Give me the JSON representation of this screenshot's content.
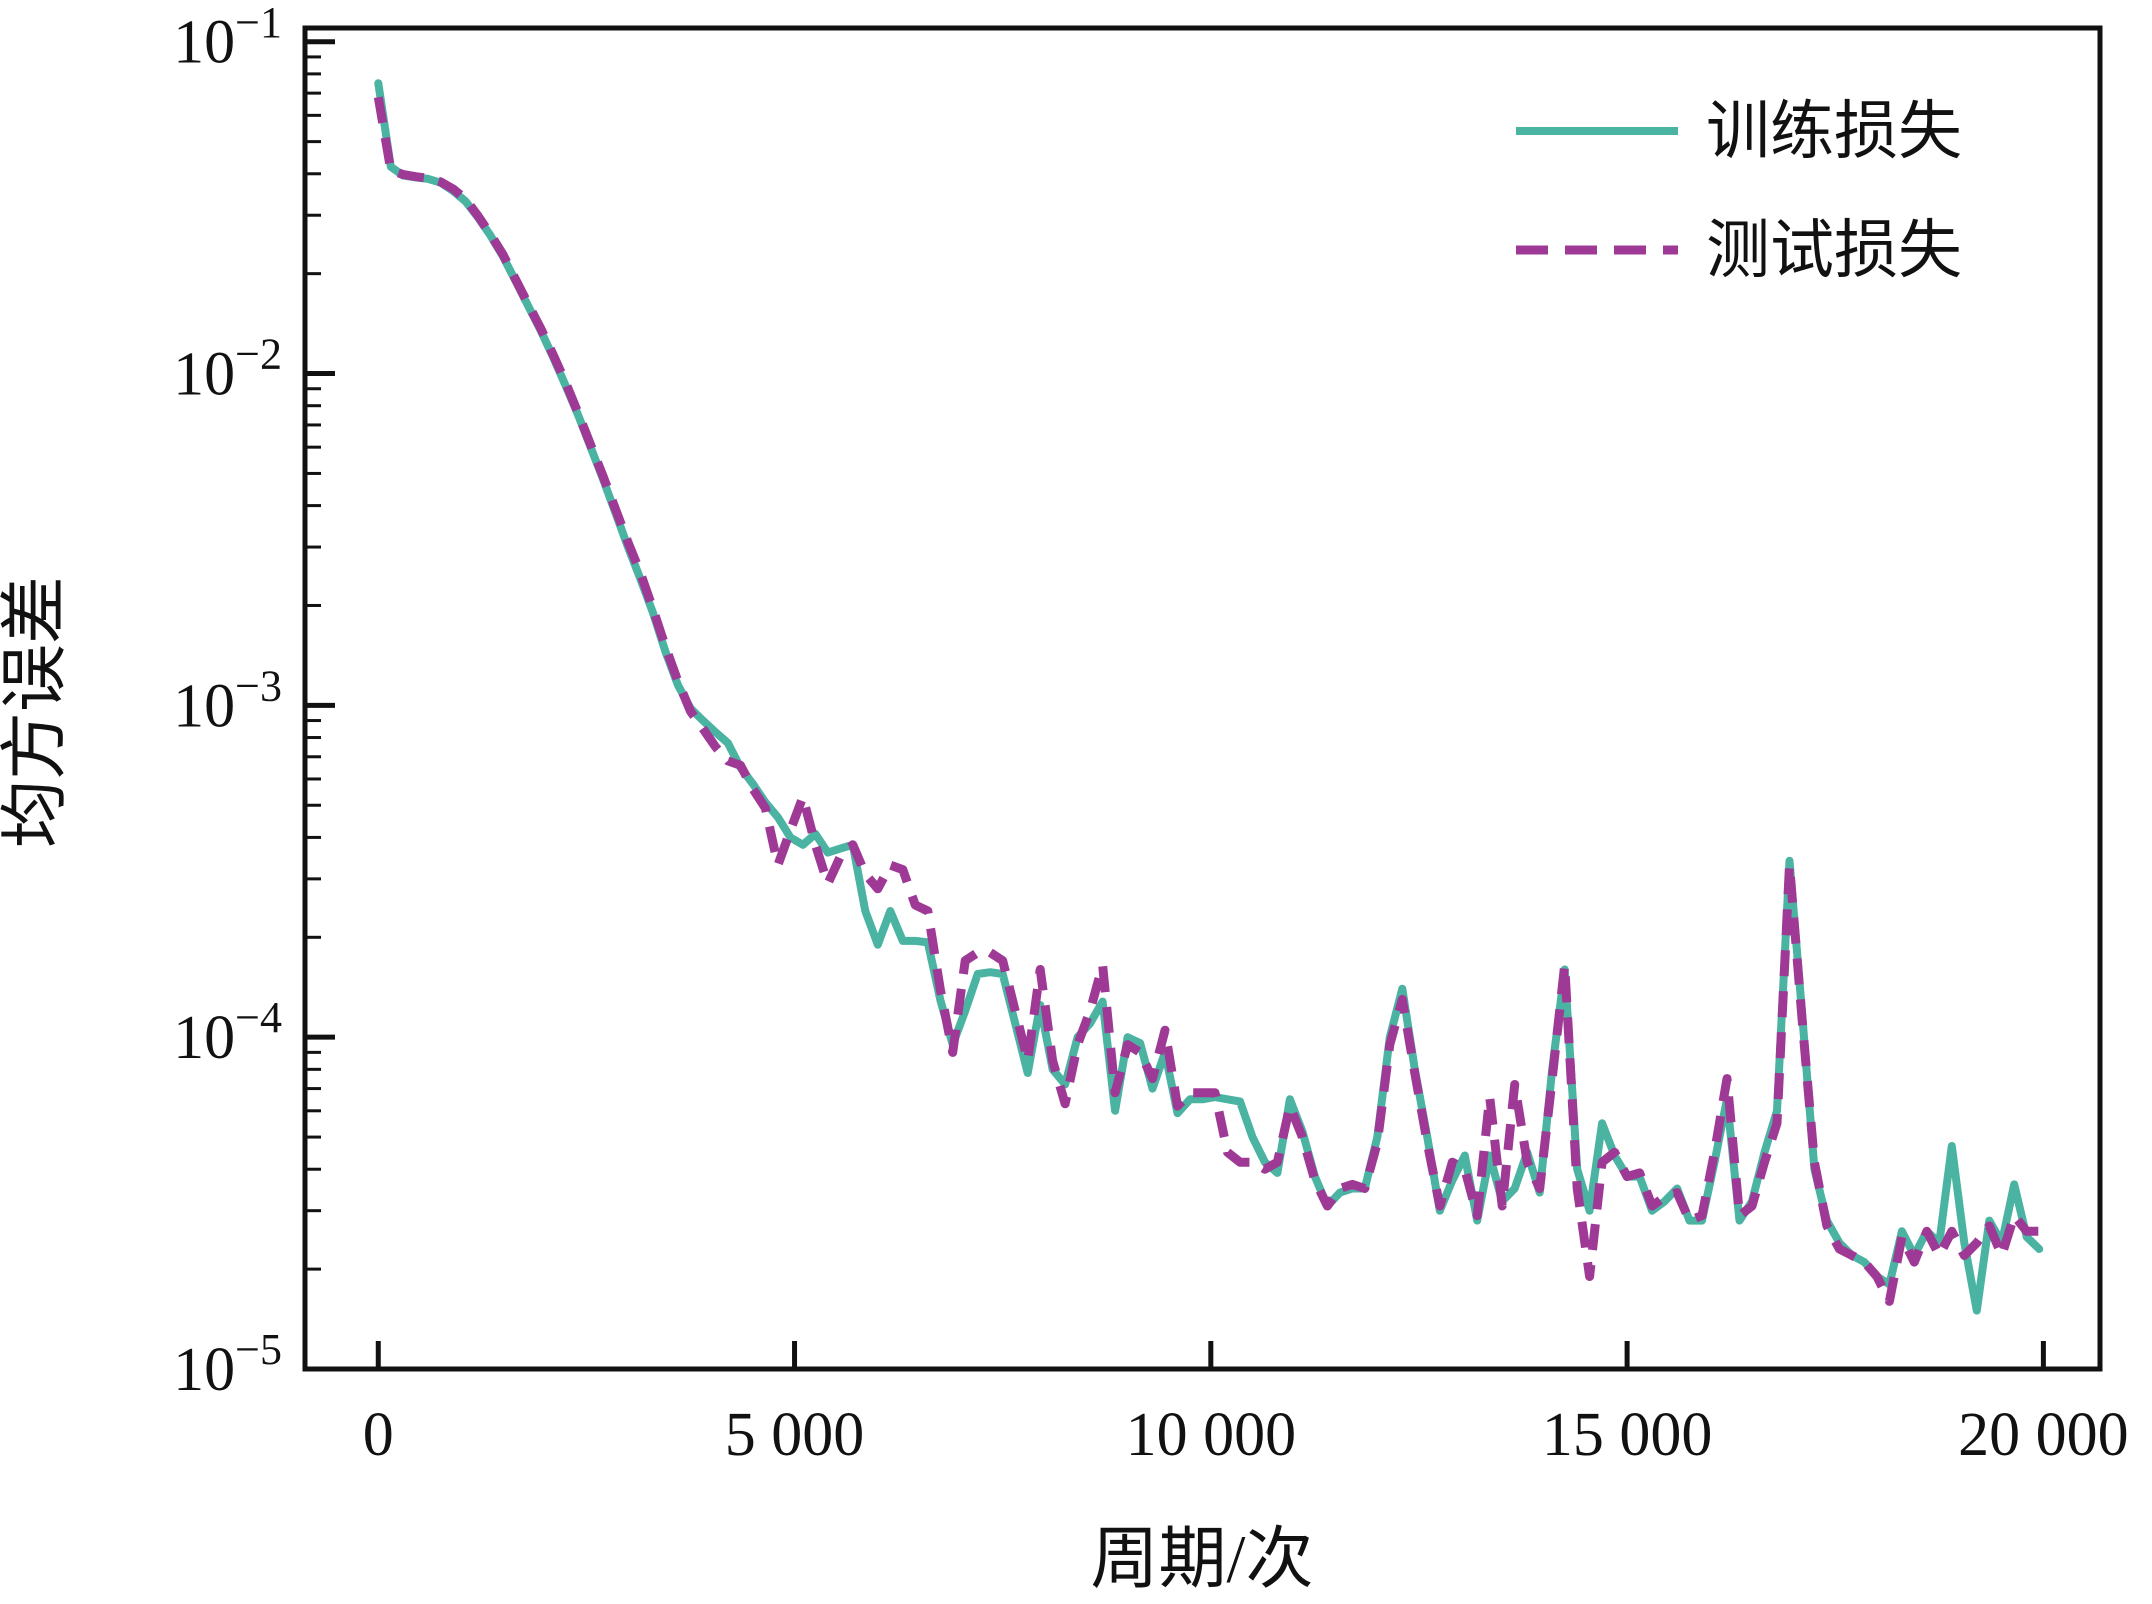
{
  "figure": {
    "background": "#ffffff",
    "axis_color": "#111111"
  },
  "chart_data": {
    "type": "line",
    "title": "",
    "xlabel": "周期/次",
    "ylabel": "均方误差",
    "yscale": "log",
    "grid": false,
    "legend_position": "upper right",
    "xlim": [
      -880,
      20680
    ],
    "ylim": [
      1e-05,
      0.11
    ],
    "x_ticks": {
      "values": [
        0,
        5000,
        10000,
        15000,
        20000
      ],
      "labels": [
        "0",
        "5 000",
        "10 000",
        "15 000",
        "20 000"
      ]
    },
    "y_ticks": {
      "values": [
        0.1,
        0.01,
        0.001,
        0.0001,
        1e-05
      ],
      "labels": [
        {
          "base": "10",
          "sup": "−1"
        },
        {
          "base": "10",
          "sup": "−2"
        },
        {
          "base": "10",
          "sup": "−3"
        },
        {
          "base": "10",
          "sup": "−4"
        },
        {
          "base": "10",
          "sup": "−5"
        }
      ],
      "minor_multiples": [
        2,
        3,
        4,
        5,
        6,
        7,
        8,
        9
      ]
    },
    "x": [
      0,
      150,
      300,
      450,
      600,
      750,
      900,
      1050,
      1200,
      1350,
      1500,
      1650,
      1800,
      1950,
      2100,
      2250,
      2400,
      2550,
      2700,
      2850,
      3000,
      3150,
      3300,
      3450,
      3600,
      3750,
      3900,
      4050,
      4200,
      4350,
      4500,
      4650,
      4800,
      4950,
      5100,
      5250,
      5400,
      5550,
      5700,
      5850,
      6000,
      6150,
      6300,
      6450,
      6600,
      6750,
      6900,
      7050,
      7200,
      7350,
      7500,
      7650,
      7800,
      7950,
      8100,
      8250,
      8400,
      8550,
      8700,
      8850,
      9000,
      9150,
      9300,
      9450,
      9600,
      9750,
      9900,
      10050,
      10200,
      10350,
      10500,
      10650,
      10800,
      10950,
      11100,
      11250,
      11400,
      11550,
      11700,
      11850,
      12000,
      12150,
      12300,
      12450,
      12600,
      12750,
      12900,
      13050,
      13200,
      13350,
      13500,
      13650,
      13800,
      13950,
      14100,
      14250,
      14400,
      14550,
      14700,
      14850,
      15000,
      15150,
      15300,
      15450,
      15600,
      15750,
      15900,
      16050,
      16200,
      16350,
      16500,
      16650,
      16800,
      16950,
      17100,
      17250,
      17400,
      17550,
      17700,
      17850,
      18000,
      18150,
      18300,
      18450,
      18600,
      18750,
      18900,
      19050,
      19200,
      19350,
      19500,
      19650,
      19800,
      19950
    ],
    "series": [
      {
        "id": "train-loss",
        "name": "训练损失",
        "color": "#4bb3a2",
        "style": "solid",
        "line_width": 8,
        "values": [
          0.075,
          0.042,
          0.0395,
          0.039,
          0.0386,
          0.0376,
          0.0355,
          0.033,
          0.0295,
          0.026,
          0.0225,
          0.019,
          0.016,
          0.0135,
          0.0112,
          0.0092,
          0.0075,
          0.006,
          0.0048,
          0.0038,
          0.003,
          0.0024,
          0.0019,
          0.00145,
          0.00115,
          0.00098,
          0.0009,
          0.00083,
          0.00077,
          0.00065,
          0.00058,
          0.00051,
          0.00046,
          0.0004,
          0.00038,
          0.00041,
          0.00036,
          0.00037,
          0.00038,
          0.00024,
          0.00019,
          0.00024,
          0.000195,
          0.000195,
          0.000193,
          0.00013,
          9.5e-05,
          0.00012,
          0.000155,
          0.000157,
          0.000155,
          0.00011,
          7.8e-05,
          0.000125,
          8e-05,
          7.2e-05,
          0.0001,
          0.00011,
          0.000128,
          6e-05,
          0.0001,
          9.6e-05,
          7e-05,
          9e-05,
          5.9e-05,
          6.5e-05,
          6.5e-05,
          6.6e-05,
          6.5e-05,
          6.4e-05,
          5e-05,
          4.2e-05,
          3.9e-05,
          6.5e-05,
          5.2e-05,
          3.8e-05,
          3.1e-05,
          3.4e-05,
          3.5e-05,
          3.5e-05,
          5e-05,
          0.0001,
          0.00014,
          8e-05,
          5e-05,
          3e-05,
          3.7e-05,
          4.4e-05,
          2.8e-05,
          4.4e-05,
          3.2e-05,
          3.5e-05,
          4.5e-05,
          3.4e-05,
          8e-05,
          0.00016,
          4e-05,
          3e-05,
          5.5e-05,
          4.4e-05,
          3.8e-05,
          3.8e-05,
          3e-05,
          3.2e-05,
          3.5e-05,
          2.8e-05,
          2.8e-05,
          4.2e-05,
          6.5e-05,
          2.8e-05,
          3.2e-05,
          4.5e-05,
          6e-05,
          0.00034,
          0.00012,
          4e-05,
          2.8e-05,
          2.4e-05,
          2.2e-05,
          2.1e-05,
          1.9e-05,
          1.8e-05,
          2.6e-05,
          2.2e-05,
          2.6e-05,
          2.4e-05,
          4.7e-05,
          2.4e-05,
          1.5e-05,
          2.8e-05,
          2.4e-05,
          3.6e-05,
          2.5e-05,
          2.3e-05
        ]
      },
      {
        "id": "test-loss",
        "name": "测试损失",
        "color": "#9e3a96",
        "style": "dashed",
        "line_width": 9,
        "values": [
          0.068,
          0.041,
          0.0398,
          0.0392,
          0.0388,
          0.0378,
          0.036,
          0.0335,
          0.0298,
          0.0262,
          0.0228,
          0.0192,
          0.0162,
          0.0137,
          0.0114,
          0.0094,
          0.0076,
          0.0061,
          0.0049,
          0.0039,
          0.0031,
          0.0025,
          0.00195,
          0.0015,
          0.00118,
          0.00096,
          0.00085,
          0.00075,
          0.00068,
          0.00066,
          0.00056,
          0.00049,
          0.00033,
          0.00042,
          0.00053,
          0.00038,
          0.00029,
          0.00035,
          0.00038,
          0.00031,
          0.00028,
          0.00033,
          0.00032,
          0.00025,
          0.00024,
          0.00014,
          9e-05,
          0.00017,
          0.00018,
          0.00018,
          0.00017,
          0.00012,
          8.5e-05,
          0.00016,
          8.5e-05,
          6.3e-05,
          9.5e-05,
          0.00012,
          0.000165,
          6.8e-05,
          9.5e-05,
          9e-05,
          7.5e-05,
          0.000105,
          6.2e-05,
          6.8e-05,
          6.8e-05,
          6.8e-05,
          4.5e-05,
          4.2e-05,
          4.2e-05,
          4e-05,
          4.2e-05,
          6.2e-05,
          5e-05,
          3.7e-05,
          3.1e-05,
          3.5e-05,
          3.6e-05,
          3.5e-05,
          4.8e-05,
          9.5e-05,
          0.00013,
          7.8e-05,
          4.8e-05,
          3.1e-05,
          4.2e-05,
          4e-05,
          2.9e-05,
          6.6e-05,
          3.1e-05,
          7.2e-05,
          4.2e-05,
          3.5e-05,
          7.5e-05,
          0.000165,
          3.5e-05,
          1.9e-05,
          4.2e-05,
          4.5e-05,
          3.8e-05,
          3.9e-05,
          3.1e-05,
          3.3e-05,
          3.4e-05,
          2.8e-05,
          2.9e-05,
          4.5e-05,
          7.5e-05,
          2.9e-05,
          3.1e-05,
          4.2e-05,
          5.5e-05,
          0.00033,
          0.000115,
          4.2e-05,
          2.7e-05,
          2.3e-05,
          2.2e-05,
          2.1e-05,
          1.9e-05,
          1.6e-05,
          2.5e-05,
          2.1e-05,
          2.6e-05,
          2.2e-05,
          2.6e-05,
          2.2e-05,
          2.4e-05,
          2.7e-05,
          2.2e-05,
          2.9e-05,
          2.6e-05,
          2.6e-05
        ]
      }
    ]
  }
}
